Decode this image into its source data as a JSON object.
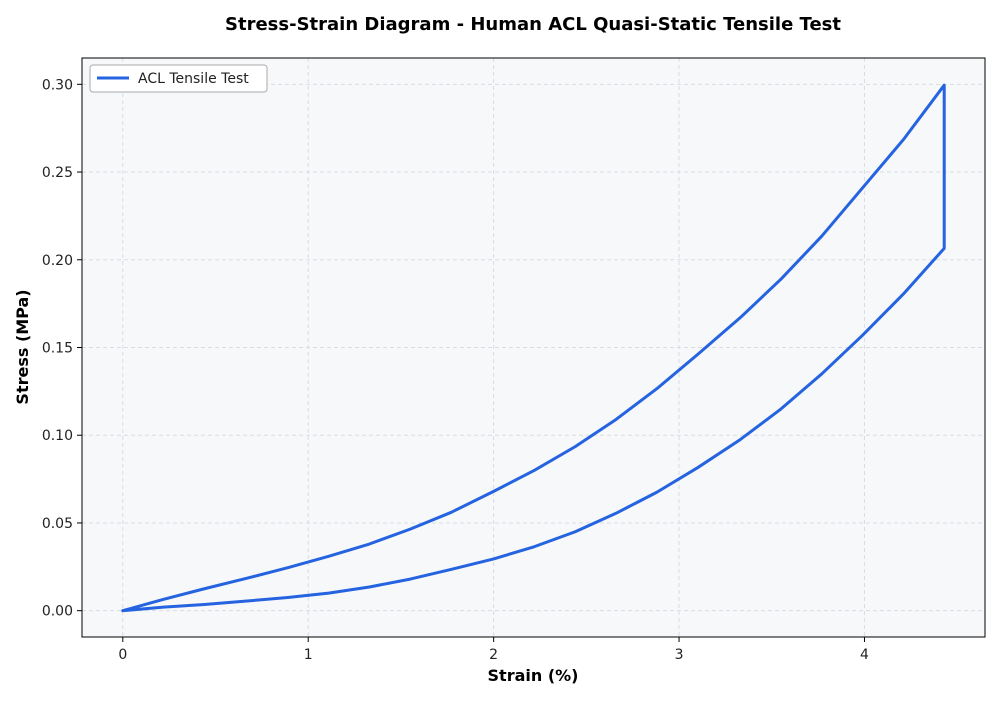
{
  "chart_data": {
    "type": "line",
    "title": "Stress-Strain Diagram - Human ACL Quasi-Static Tensile Test",
    "xlabel": "Strain (%)",
    "ylabel": "Stress (MPa)",
    "xlim": [
      -0.22,
      4.65
    ],
    "ylim": [
      -0.015,
      0.315
    ],
    "xticks": [
      0,
      1,
      2,
      3,
      4
    ],
    "xtick_labels": [
      "0",
      "1",
      "2",
      "3",
      "4"
    ],
    "yticks": [
      0.0,
      0.05,
      0.1,
      0.15,
      0.2,
      0.25,
      0.3
    ],
    "ytick_labels": [
      "0.00",
      "0.05",
      "0.10",
      "0.15",
      "0.20",
      "0.25",
      "0.30"
    ],
    "grid": true,
    "legend_position": "top-left",
    "colors": {
      "line": "#2563e0",
      "plot_background": "#f6f8fa",
      "grid": "#d8dde3"
    },
    "series": [
      {
        "name": "ACL Tensile Test",
        "x": [
          0,
          0.22,
          0.44,
          0.67,
          0.89,
          1.11,
          1.33,
          1.55,
          1.77,
          2.0,
          2.22,
          2.44,
          2.66,
          2.88,
          3.1,
          3.33,
          3.55,
          3.77,
          3.99,
          4.21,
          4.43,
          4.43,
          4.21,
          3.99,
          3.77,
          3.55,
          3.33,
          3.1,
          2.88,
          2.66,
          2.44,
          2.22,
          2.0,
          1.77,
          1.55,
          1.33,
          1.11,
          0.89,
          0.67,
          0.44,
          0.22,
          0
        ],
        "y": [
          0,
          0.0065,
          0.0125,
          0.0185,
          0.0245,
          0.031,
          0.038,
          0.0465,
          0.056,
          0.068,
          0.08,
          0.0935,
          0.109,
          0.1265,
          0.146,
          0.167,
          0.189,
          0.2135,
          0.241,
          0.2685,
          0.2995,
          0.2065,
          0.1805,
          0.157,
          0.135,
          0.115,
          0.0975,
          0.0815,
          0.0675,
          0.0555,
          0.045,
          0.0365,
          0.0295,
          0.0235,
          0.018,
          0.0135,
          0.01,
          0.0075,
          0.0055,
          0.0035,
          0.002,
          0
        ]
      }
    ]
  }
}
